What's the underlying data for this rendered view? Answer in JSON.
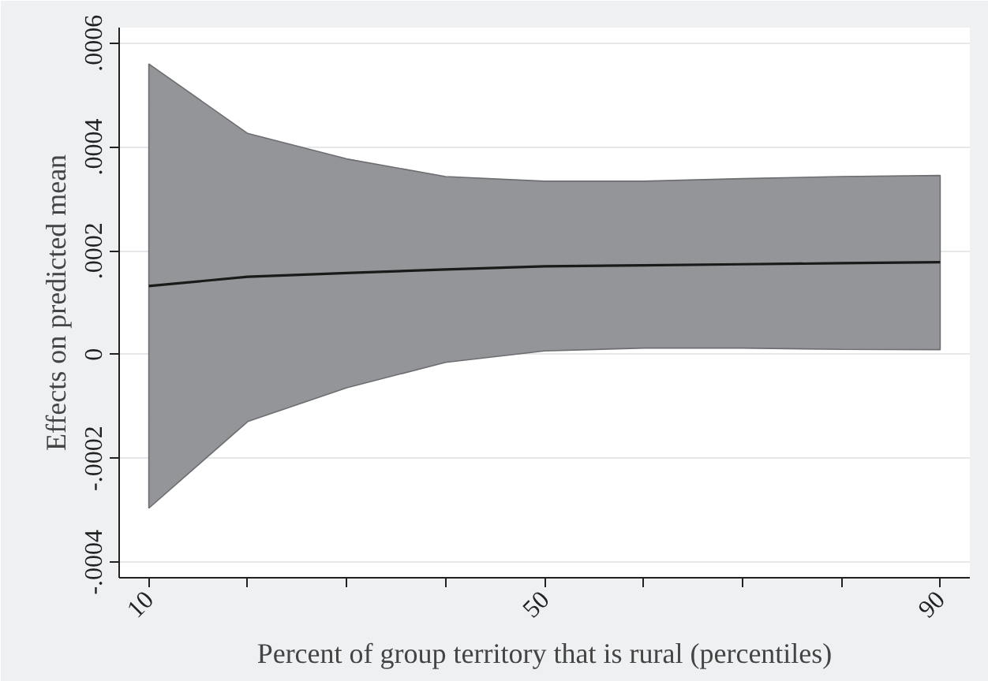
{
  "chart_data": {
    "type": "line",
    "xlabel": "Percent of group territory that is rural (percentiles)",
    "ylabel": "Effects on predicted mean",
    "categories": [
      "10",
      null,
      null,
      null,
      "50",
      null,
      null,
      null,
      "90"
    ],
    "series": [
      {
        "color": "#1a1a1a",
        "values": [
          0.000132,
          0.00015,
          0.000157,
          0.000164,
          0.00017,
          0.000172,
          0.000174,
          0.000176,
          0.000178
        ],
        "lower": [
          -0.000296,
          -0.000129,
          -6.4e-05,
          -1.5e-05,
          7e-06,
          1.25e-05,
          1.25e-05,
          1e-05,
          9.4e-06
        ],
        "upper": [
          0.00056,
          0.000426,
          0.000377,
          0.000343,
          0.000334,
          0.000334,
          0.000339,
          0.000343,
          0.000345
        ]
      }
    ],
    "ylim": [
      -0.00043,
      0.00063
    ],
    "yticks": [
      {
        "value": -0.0004,
        "label": "-.0004"
      },
      {
        "value": -0.0002,
        "label": "-.0002"
      },
      {
        "value": 0,
        "label": "0"
      },
      {
        "value": 0.0002,
        "label": ".0002"
      },
      {
        "value": 0.0004,
        "label": ".0004"
      },
      {
        "value": 0.0006,
        "label": ".0006"
      }
    ],
    "grid": "y",
    "marker": "none",
    "line_style": "solid"
  }
}
